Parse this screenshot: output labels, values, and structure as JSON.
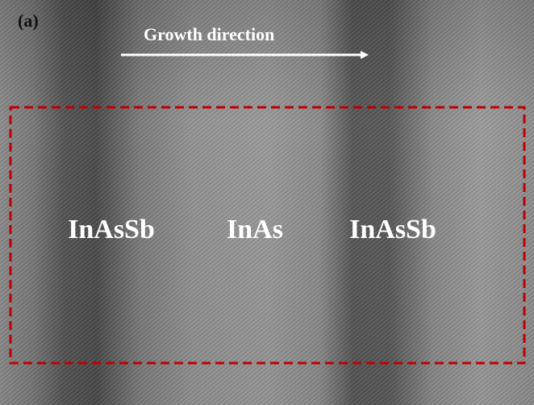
{
  "panel_label": "(a)",
  "arrow_label": "Growth direction",
  "regions": [
    "InAsSb",
    "InAs",
    "InAsSb"
  ]
}
